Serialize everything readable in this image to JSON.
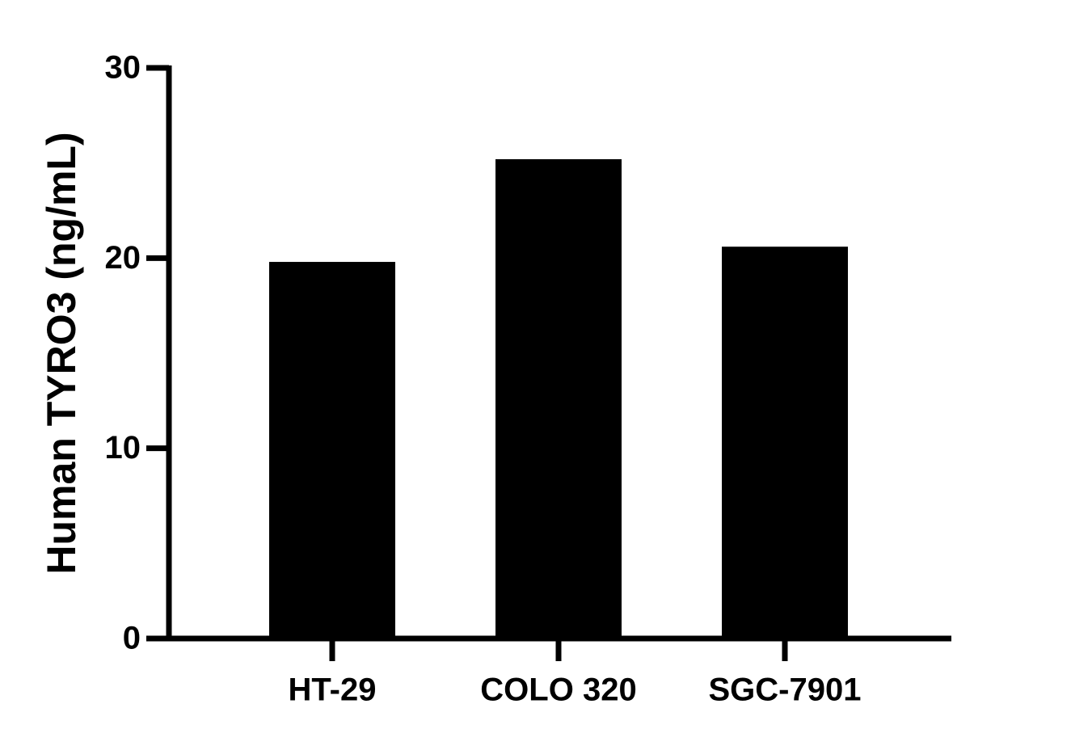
{
  "chart_data": {
    "type": "bar",
    "y_label": "Human TYRO3 (ng/mL)",
    "categories": [
      "HT-29",
      "COLO 320",
      "SGC-7901"
    ],
    "values": [
      19.8,
      25.2,
      20.6
    ],
    "color": "#000000",
    "ylim": [
      0,
      30
    ],
    "yticks": [
      0,
      10,
      20,
      30
    ],
    "grid": false
  }
}
